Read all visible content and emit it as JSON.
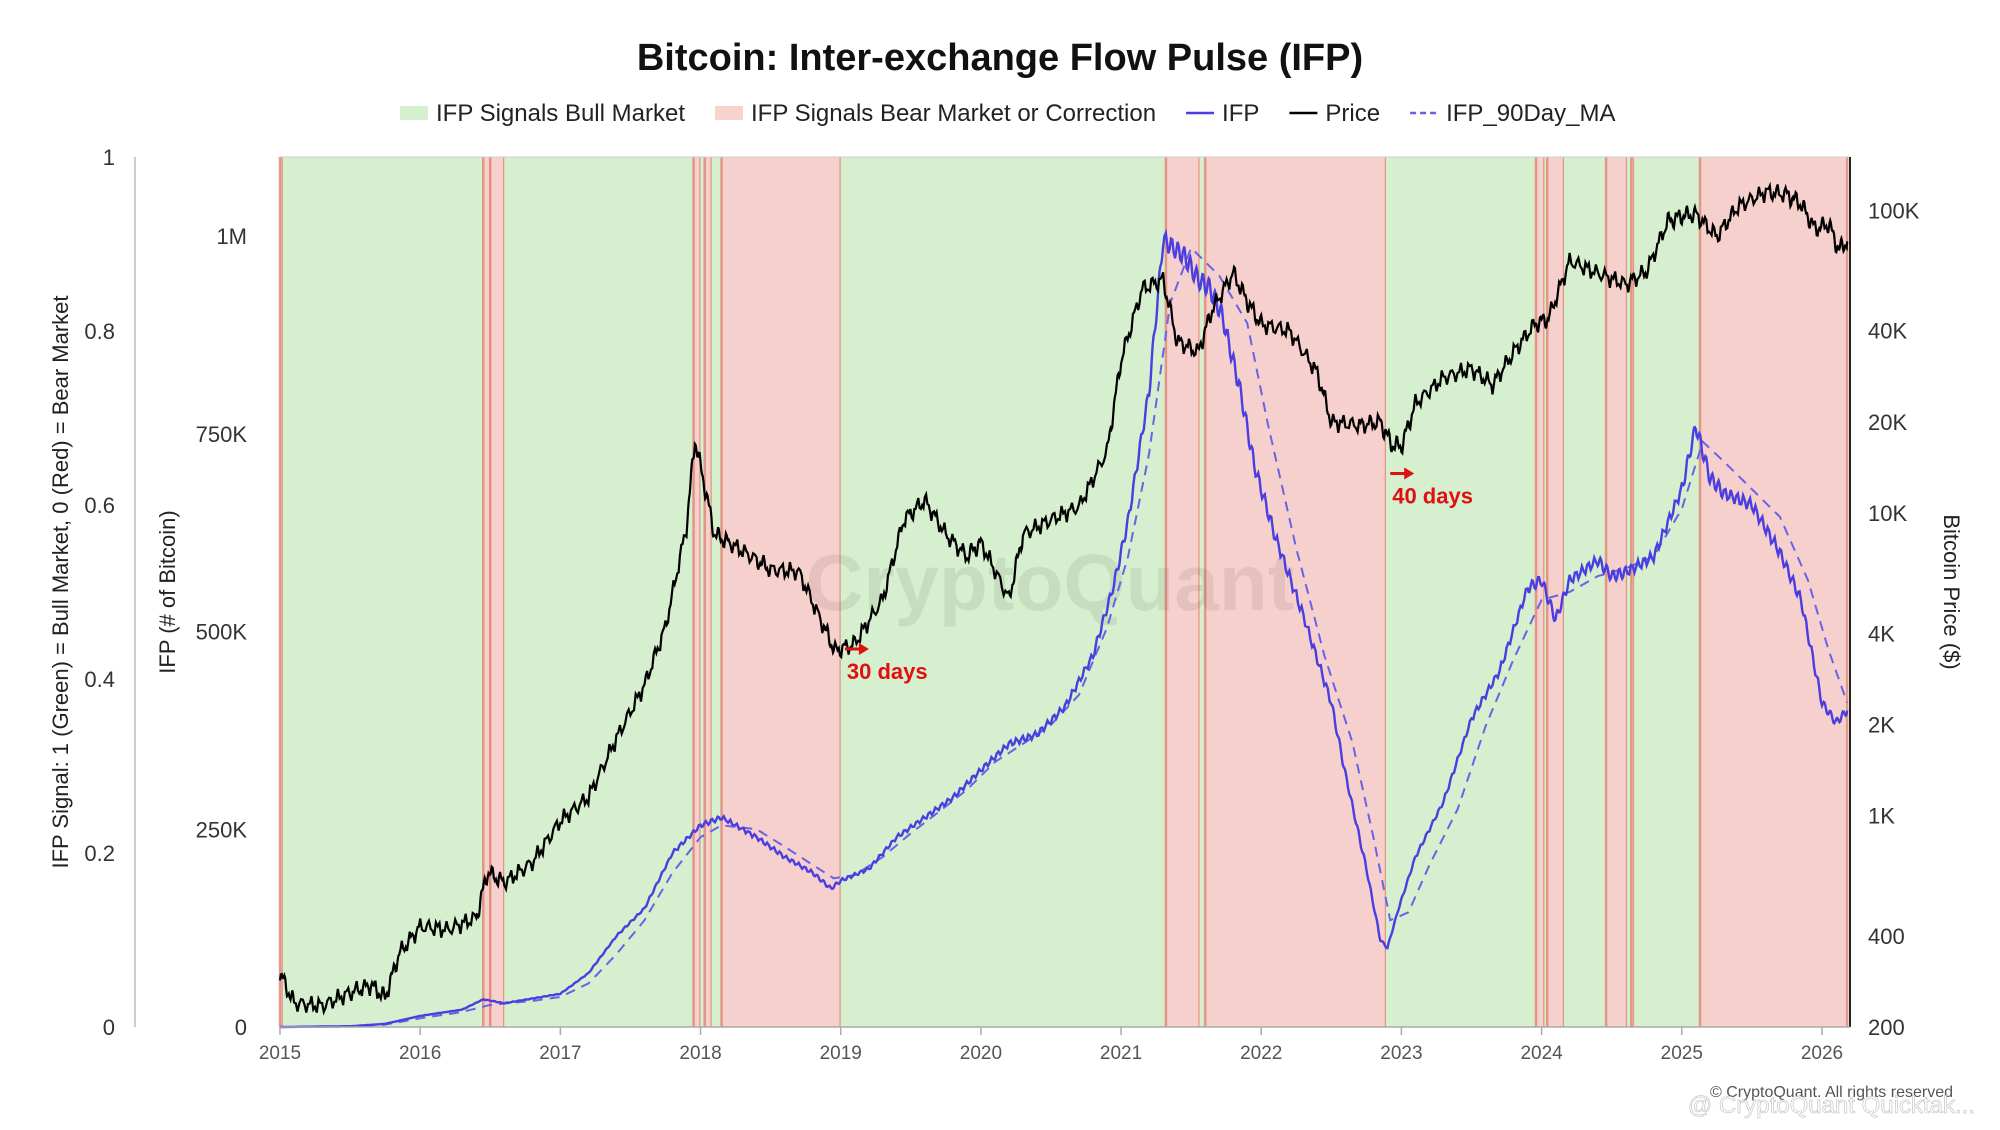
{
  "chart_data": {
    "type": "line",
    "title": "Bitcoin: Inter-exchange Flow Pulse (IFP)",
    "legend": [
      {
        "label": "IFP Signals Bull Market",
        "kind": "band",
        "color": "#d6efce"
      },
      {
        "label": "IFP Signals Bear Market or Correction",
        "kind": "band",
        "color": "#f7d2cf"
      },
      {
        "label": "IFP",
        "kind": "line",
        "color": "#4a3ee0"
      },
      {
        "label": "Price",
        "kind": "line",
        "color": "#000000"
      },
      {
        "label": "IFP_90Day_MA",
        "kind": "dashed",
        "color": "#6a62e6"
      }
    ],
    "x_axis": {
      "range": [
        2015.0,
        2026.2
      ],
      "ticks": [
        "2015",
        "2016",
        "2017",
        "2018",
        "2019",
        "2020",
        "2021",
        "2022",
        "2023",
        "2024",
        "2025",
        "2026"
      ]
    },
    "signal_axis": {
      "label": "IFP Signal: 1 (Green) = Bull Market, 0 (Red) = Bear Market",
      "range": [
        0,
        1
      ],
      "ticks": [
        "0",
        "0.2",
        "0.4",
        "0.6",
        "0.8",
        "1"
      ]
    },
    "ifp_axis": {
      "label": "IFP (# of Bitcoin)",
      "range": [
        0,
        1100000
      ],
      "ticks": [
        {
          "v": 0,
          "t": "0"
        },
        {
          "v": 250000,
          "t": "250K"
        },
        {
          "v": 500000,
          "t": "500K"
        },
        {
          "v": 750000,
          "t": "750K"
        },
        {
          "v": 1000000,
          "t": "1M"
        }
      ]
    },
    "price_axis": {
      "label": "Bitcoin Price ($)",
      "scale": "log",
      "range": [
        200,
        150000
      ],
      "ticks": [
        {
          "v": 200,
          "t": "200"
        },
        {
          "v": 400,
          "t": "400"
        },
        {
          "v": 1000,
          "t": "1K"
        },
        {
          "v": 2000,
          "t": "2K"
        },
        {
          "v": 4000,
          "t": "4K"
        },
        {
          "v": 10000,
          "t": "10K"
        },
        {
          "v": 20000,
          "t": "20K"
        },
        {
          "v": 40000,
          "t": "40K"
        },
        {
          "v": 100000,
          "t": "100K"
        }
      ]
    },
    "bands": [
      {
        "from": 2015.0,
        "to": 2015.02,
        "signal": "bear"
      },
      {
        "from": 2015.02,
        "to": 2016.45,
        "signal": "bull"
      },
      {
        "from": 2016.45,
        "to": 2016.5,
        "signal": "bear"
      },
      {
        "from": 2016.5,
        "to": 2016.6,
        "signal": "bear"
      },
      {
        "from": 2016.6,
        "to": 2017.95,
        "signal": "bull"
      },
      {
        "from": 2017.95,
        "to": 2018.0,
        "signal": "bear"
      },
      {
        "from": 2018.0,
        "to": 2018.03,
        "signal": "bull"
      },
      {
        "from": 2018.03,
        "to": 2018.08,
        "signal": "bear"
      },
      {
        "from": 2018.08,
        "to": 2018.15,
        "signal": "bull"
      },
      {
        "from": 2018.15,
        "to": 2019.0,
        "signal": "bear"
      },
      {
        "from": 2019.0,
        "to": 2021.32,
        "signal": "bull"
      },
      {
        "from": 2021.32,
        "to": 2021.56,
        "signal": "bear"
      },
      {
        "from": 2021.56,
        "to": 2021.6,
        "signal": "bull"
      },
      {
        "from": 2021.6,
        "to": 2022.89,
        "signal": "bear"
      },
      {
        "from": 2022.89,
        "to": 2023.96,
        "signal": "bull"
      },
      {
        "from": 2023.96,
        "to": 2024.02,
        "signal": "bear"
      },
      {
        "from": 2024.02,
        "to": 2024.04,
        "signal": "bull"
      },
      {
        "from": 2024.04,
        "to": 2024.16,
        "signal": "bear"
      },
      {
        "from": 2024.16,
        "to": 2024.46,
        "signal": "bull"
      },
      {
        "from": 2024.46,
        "to": 2024.61,
        "signal": "bear"
      },
      {
        "from": 2024.61,
        "to": 2024.64,
        "signal": "bull"
      },
      {
        "from": 2024.64,
        "to": 2024.66,
        "signal": "bear"
      },
      {
        "from": 2024.66,
        "to": 2025.13,
        "signal": "bull"
      },
      {
        "from": 2025.13,
        "to": 2026.18,
        "signal": "bear"
      }
    ],
    "series": [
      {
        "name": "IFP",
        "axis": "ifp",
        "points": [
          [
            2015.0,
            0
          ],
          [
            2015.5,
            1000
          ],
          [
            2015.75,
            4000
          ],
          [
            2016.0,
            14000
          ],
          [
            2016.3,
            22000
          ],
          [
            2016.45,
            35000
          ],
          [
            2016.6,
            30000
          ],
          [
            2016.8,
            36000
          ],
          [
            2017.0,
            42000
          ],
          [
            2017.2,
            68000
          ],
          [
            2017.4,
            115000
          ],
          [
            2017.6,
            150000
          ],
          [
            2017.8,
            220000
          ],
          [
            2018.0,
            255000
          ],
          [
            2018.15,
            265000
          ],
          [
            2018.4,
            240000
          ],
          [
            2018.6,
            215000
          ],
          [
            2018.8,
            195000
          ],
          [
            2018.93,
            175000
          ],
          [
            2019.0,
            185000
          ],
          [
            2019.2,
            200000
          ],
          [
            2019.4,
            240000
          ],
          [
            2019.6,
            265000
          ],
          [
            2019.8,
            290000
          ],
          [
            2020.0,
            325000
          ],
          [
            2020.2,
            358000
          ],
          [
            2020.4,
            370000
          ],
          [
            2020.6,
            405000
          ],
          [
            2020.8,
            470000
          ],
          [
            2020.95,
            560000
          ],
          [
            2021.05,
            640000
          ],
          [
            2021.2,
            805000
          ],
          [
            2021.3,
            995000
          ],
          [
            2021.45,
            975000
          ],
          [
            2021.55,
            945000
          ],
          [
            2021.63,
            935000
          ],
          [
            2021.72,
            900000
          ],
          [
            2021.85,
            805000
          ],
          [
            2021.95,
            710000
          ],
          [
            2022.1,
            620000
          ],
          [
            2022.3,
            520000
          ],
          [
            2022.5,
            410000
          ],
          [
            2022.6,
            320000
          ],
          [
            2022.75,
            200000
          ],
          [
            2022.85,
            110000
          ],
          [
            2022.9,
            100000
          ],
          [
            2022.98,
            150000
          ],
          [
            2023.1,
            215000
          ],
          [
            2023.3,
            285000
          ],
          [
            2023.5,
            390000
          ],
          [
            2023.7,
            450000
          ],
          [
            2023.9,
            555000
          ],
          [
            2024.0,
            565000
          ],
          [
            2024.05,
            540000
          ],
          [
            2024.1,
            515000
          ],
          [
            2024.2,
            565000
          ],
          [
            2024.4,
            590000
          ],
          [
            2024.5,
            570000
          ],
          [
            2024.6,
            575000
          ],
          [
            2024.8,
            595000
          ],
          [
            2025.0,
            680000
          ],
          [
            2025.1,
            760000
          ],
          [
            2025.2,
            695000
          ],
          [
            2025.3,
            675000
          ],
          [
            2025.5,
            660000
          ],
          [
            2025.7,
            600000
          ],
          [
            2025.85,
            540000
          ],
          [
            2026.0,
            410000
          ],
          [
            2026.1,
            385000
          ],
          [
            2026.18,
            400000
          ]
        ]
      },
      {
        "name": "IFP_90Day_MA",
        "axis": "ifp",
        "points": [
          [
            2015.0,
            0
          ],
          [
            2015.5,
            500
          ],
          [
            2015.75,
            3000
          ],
          [
            2016.0,
            11000
          ],
          [
            2016.3,
            19000
          ],
          [
            2016.5,
            28000
          ],
          [
            2016.8,
            33000
          ],
          [
            2017.0,
            38000
          ],
          [
            2017.2,
            55000
          ],
          [
            2017.4,
            92000
          ],
          [
            2017.6,
            135000
          ],
          [
            2017.8,
            195000
          ],
          [
            2018.0,
            240000
          ],
          [
            2018.15,
            255000
          ],
          [
            2018.4,
            250000
          ],
          [
            2018.6,
            228000
          ],
          [
            2018.8,
            205000
          ],
          [
            2018.95,
            188000
          ],
          [
            2019.1,
            192000
          ],
          [
            2019.3,
            215000
          ],
          [
            2019.5,
            245000
          ],
          [
            2019.7,
            272000
          ],
          [
            2019.9,
            300000
          ],
          [
            2020.1,
            335000
          ],
          [
            2020.3,
            358000
          ],
          [
            2020.5,
            382000
          ],
          [
            2020.7,
            420000
          ],
          [
            2020.9,
            505000
          ],
          [
            2021.05,
            595000
          ],
          [
            2021.2,
            725000
          ],
          [
            2021.35,
            915000
          ],
          [
            2021.5,
            985000
          ],
          [
            2021.7,
            950000
          ],
          [
            2021.9,
            890000
          ],
          [
            2022.05,
            760000
          ],
          [
            2022.25,
            605000
          ],
          [
            2022.45,
            470000
          ],
          [
            2022.65,
            360000
          ],
          [
            2022.8,
            240000
          ],
          [
            2022.92,
            135000
          ],
          [
            2023.05,
            145000
          ],
          [
            2023.2,
            205000
          ],
          [
            2023.4,
            275000
          ],
          [
            2023.6,
            380000
          ],
          [
            2023.8,
            465000
          ],
          [
            2024.0,
            540000
          ],
          [
            2024.2,
            550000
          ],
          [
            2024.4,
            570000
          ],
          [
            2024.6,
            580000
          ],
          [
            2024.8,
            595000
          ],
          [
            2025.0,
            655000
          ],
          [
            2025.15,
            740000
          ],
          [
            2025.3,
            715000
          ],
          [
            2025.5,
            680000
          ],
          [
            2025.7,
            645000
          ],
          [
            2025.9,
            565000
          ],
          [
            2026.05,
            475000
          ],
          [
            2026.18,
            410000
          ]
        ]
      },
      {
        "name": "Price",
        "axis": "price",
        "points": [
          [
            2015.0,
            300
          ],
          [
            2015.1,
            240
          ],
          [
            2015.3,
            235
          ],
          [
            2015.5,
            260
          ],
          [
            2015.65,
            275
          ],
          [
            2015.75,
            250
          ],
          [
            2015.85,
            350
          ],
          [
            2016.0,
            430
          ],
          [
            2016.2,
            420
          ],
          [
            2016.4,
            460
          ],
          [
            2016.48,
            650
          ],
          [
            2016.6,
            600
          ],
          [
            2016.8,
            700
          ],
          [
            2017.0,
            960
          ],
          [
            2017.2,
            1150
          ],
          [
            2017.4,
            1800
          ],
          [
            2017.6,
            2700
          ],
          [
            2017.75,
            4200
          ],
          [
            2017.9,
            9000
          ],
          [
            2017.96,
            17500
          ],
          [
            2018.05,
            11000
          ],
          [
            2018.1,
            8500
          ],
          [
            2018.2,
            8000
          ],
          [
            2018.4,
            7000
          ],
          [
            2018.5,
            6500
          ],
          [
            2018.7,
            6400
          ],
          [
            2018.88,
            4200
          ],
          [
            2018.96,
            3500
          ],
          [
            2019.1,
            3700
          ],
          [
            2019.3,
            5200
          ],
          [
            2019.45,
            9500
          ],
          [
            2019.6,
            11000
          ],
          [
            2019.75,
            8500
          ],
          [
            2019.9,
            7200
          ],
          [
            2020.0,
            8000
          ],
          [
            2020.2,
            5200
          ],
          [
            2020.3,
            8500
          ],
          [
            2020.5,
            9500
          ],
          [
            2020.7,
            10500
          ],
          [
            2020.9,
            16000
          ],
          [
            2021.0,
            32000
          ],
          [
            2021.15,
            55000
          ],
          [
            2021.3,
            59000
          ],
          [
            2021.4,
            37000
          ],
          [
            2021.55,
            34000
          ],
          [
            2021.65,
            47000
          ],
          [
            2021.8,
            62000
          ],
          [
            2021.9,
            50000
          ],
          [
            2022.0,
            42000
          ],
          [
            2022.2,
            40000
          ],
          [
            2022.4,
            29000
          ],
          [
            2022.5,
            20000
          ],
          [
            2022.7,
            19500
          ],
          [
            2022.85,
            20000
          ],
          [
            2022.93,
            16800
          ],
          [
            2023.0,
            16600
          ],
          [
            2023.1,
            23000
          ],
          [
            2023.3,
            28000
          ],
          [
            2023.5,
            30000
          ],
          [
            2023.65,
            26500
          ],
          [
            2023.8,
            34000
          ],
          [
            2023.95,
            42000
          ],
          [
            2024.05,
            44000
          ],
          [
            2024.2,
            68000
          ],
          [
            2024.4,
            62000
          ],
          [
            2024.6,
            57000
          ],
          [
            2024.75,
            63000
          ],
          [
            2024.9,
            92000
          ],
          [
            2025.0,
            96000
          ],
          [
            2025.1,
            97000
          ],
          [
            2025.25,
            82000
          ],
          [
            2025.4,
            103000
          ],
          [
            2025.6,
            115000
          ],
          [
            2025.75,
            113000
          ],
          [
            2025.85,
            105000
          ],
          [
            2025.95,
            87000
          ],
          [
            2026.05,
            90000
          ],
          [
            2026.12,
            74000
          ],
          [
            2026.18,
            79000
          ]
        ]
      }
    ],
    "annotations": [
      {
        "text": "30 days",
        "x": 2019.03,
        "price": 3550
      },
      {
        "text": "40 days",
        "x": 2022.92,
        "price": 13500
      }
    ],
    "watermark": "CryptoQuant",
    "footer": "© CryptoQuant. All rights reserved",
    "footer_overlay": "@ CryptoQuant Quicktak..."
  }
}
